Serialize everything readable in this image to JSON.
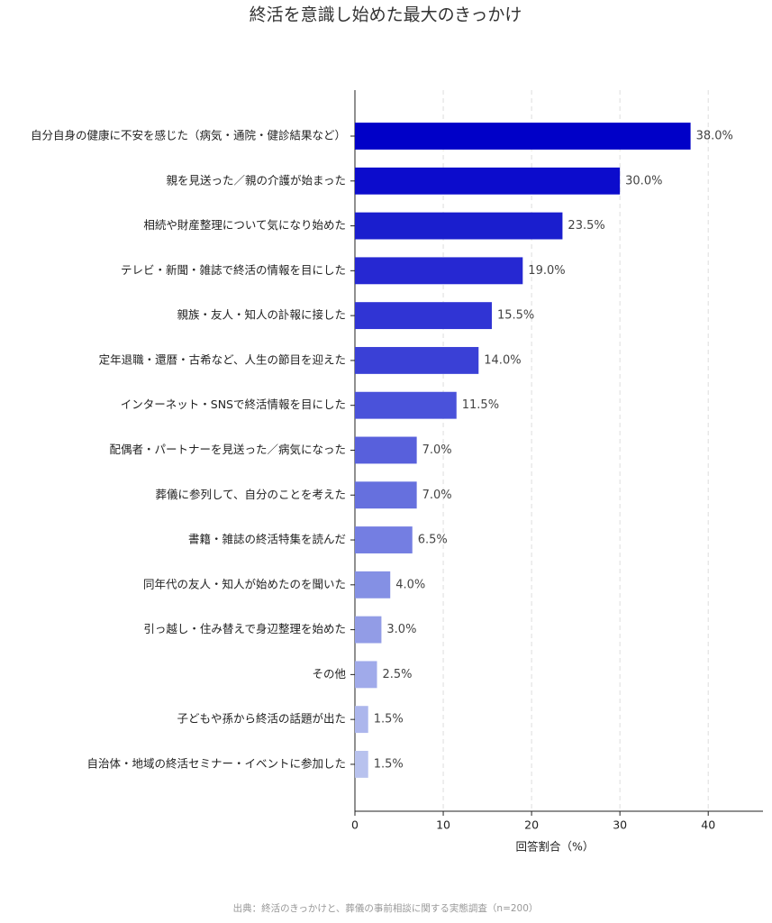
{
  "chart_data": {
    "type": "bar",
    "orientation": "horizontal",
    "title": "終活を意識し始めた最大のきっかけ",
    "xlabel": "回答割合（%）",
    "source": "出典：終活のきっかけと、葬儀の事前相談に関する実態調査（n=200）",
    "categories": [
      "自分自身の健康に不安を感じた（病気・通院・健診結果など）",
      "親を見送った／親の介護が始まった",
      "相続や財産整理について気になり始めた",
      "テレビ・新聞・雑誌で終活の情報を目にした",
      "親族・友人・知人の訃報に接した",
      "定年退職・還暦・古希など、人生の節目を迎えた",
      "インターネット・SNSで終活情報を目にした",
      "配偶者・パートナーを見送った／病気になった",
      "葬儀に参列して、自分のことを考えた",
      "書籍・雑誌の終活特集を読んだ",
      "同年代の友人・知人が始めたのを聞いた",
      "引っ越し・住み替えで身辺整理を始めた",
      "その他",
      "子どもや孫から終活の話題が出た",
      "自治体・地域の終活セミナー・イベントに参加した"
    ],
    "values": [
      38.0,
      30.0,
      23.5,
      19.0,
      15.5,
      14.0,
      11.5,
      7.0,
      7.0,
      6.5,
      4.0,
      3.0,
      2.5,
      1.5,
      1.5
    ],
    "value_labels": [
      "38.0%",
      "30.0%",
      "23.5%",
      "19.0%",
      "15.5%",
      "14.0%",
      "11.5%",
      "7.0%",
      "7.0%",
      "6.5%",
      "4.0%",
      "3.0%",
      "2.5%",
      "1.5%",
      "1.5%"
    ],
    "colors": [
      "#0000c8",
      "#0c0ccc",
      "#1a1ece",
      "#2628d2",
      "#3034d4",
      "#3a40d6",
      "#4a52da",
      "#5860dc",
      "#6670de",
      "#747ee2",
      "#8490e4",
      "#929ce6",
      "#a0aaea",
      "#acb6ec",
      "#b8c2ee"
    ],
    "xlim": [
      0,
      46.2
    ],
    "xticks": [
      0,
      10,
      20,
      30,
      40
    ],
    "grid": true
  }
}
